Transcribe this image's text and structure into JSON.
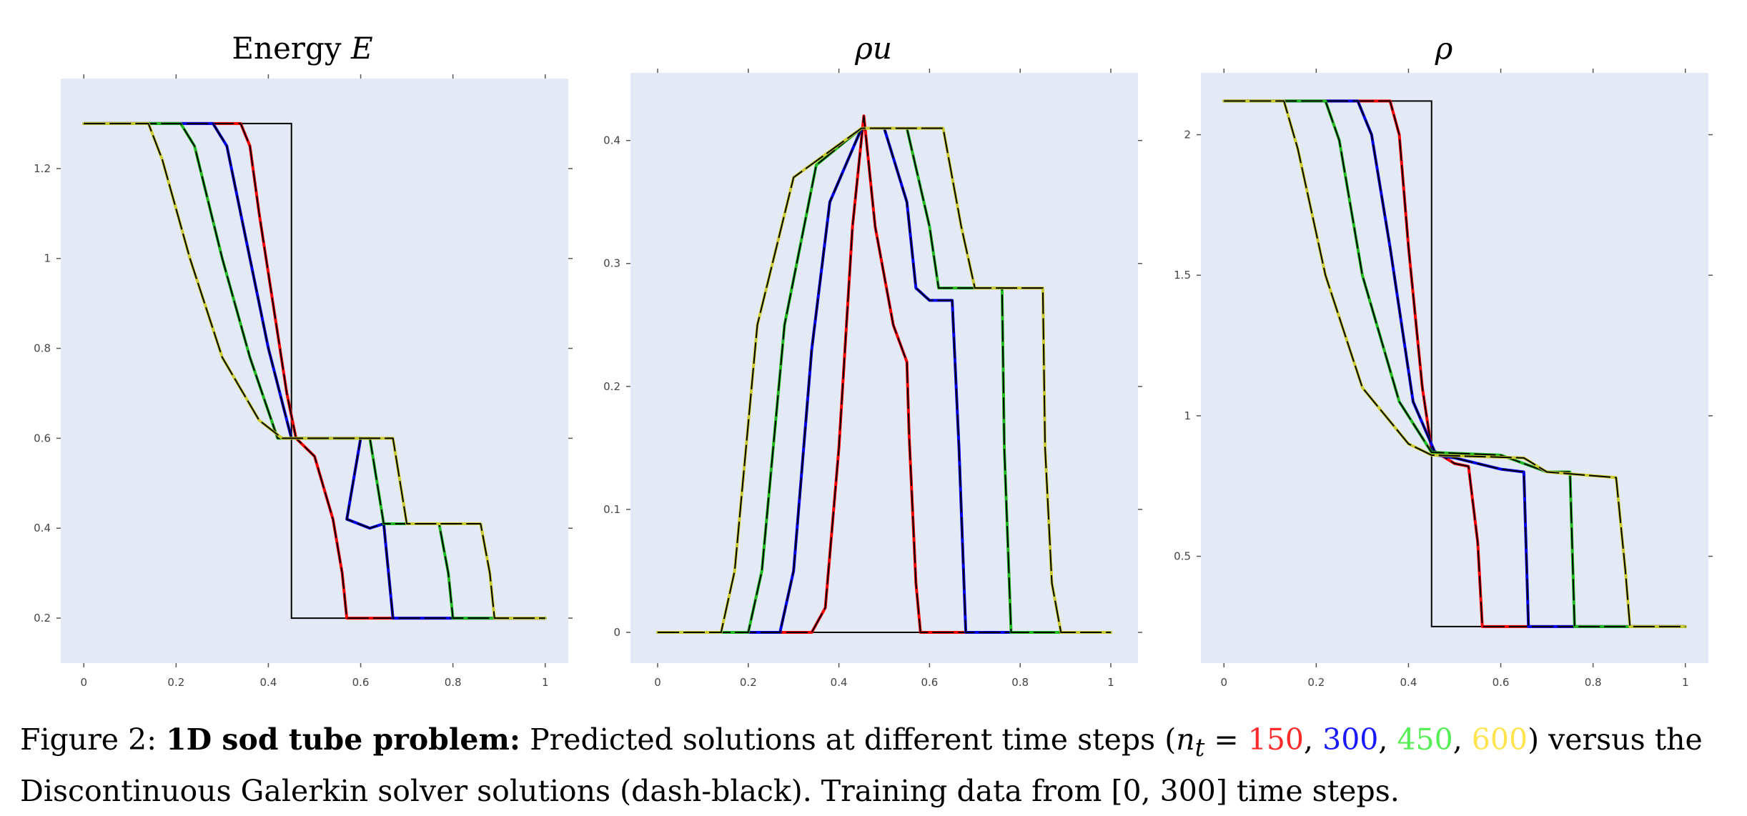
{
  "colors": {
    "plot_bg": "#e4eaf5",
    "series_150": "#ff0000",
    "series_300": "#0000ee",
    "series_450": "#22bb22",
    "series_600": "#cccc33",
    "reference": "#000000"
  },
  "chart_data": [
    {
      "type": "line",
      "title": "Energy E",
      "xlabel": "",
      "ylabel": "",
      "xlim": [
        -0.05,
        1.05
      ],
      "ylim": [
        0.1,
        1.4
      ],
      "xticks": [
        "0",
        "0.2",
        "0.4",
        "0.6",
        "0.8",
        "1"
      ],
      "yticks": [
        "0.2",
        "0.4",
        "0.6",
        "0.8",
        "1",
        "1.2"
      ],
      "xtick_values": [
        0,
        0.2,
        0.4,
        0.6,
        0.8,
        1
      ],
      "ytick_values": [
        0.2,
        0.4,
        0.6,
        0.8,
        1,
        1.2
      ],
      "initial_condition": {
        "x": [
          0,
          0.45,
          0.45,
          1
        ],
        "y": [
          1.3,
          1.3,
          0.2,
          0.2
        ]
      },
      "series": [
        {
          "nt": "150",
          "x": [
            0,
            0.34,
            0.36,
            0.38,
            0.41,
            0.44,
            0.46,
            0.5,
            0.54,
            0.56,
            0.57,
            0.62,
            1
          ],
          "y": [
            1.3,
            1.3,
            1.25,
            1.1,
            0.9,
            0.7,
            0.6,
            0.56,
            0.42,
            0.3,
            0.2,
            0.2,
            0.2
          ]
        },
        {
          "nt": "300",
          "x": [
            0,
            0.28,
            0.31,
            0.35,
            0.4,
            0.45,
            0.6,
            0.57,
            0.62,
            0.65,
            0.67,
            0.72,
            1
          ],
          "y": [
            1.3,
            1.3,
            1.25,
            1.05,
            0.8,
            0.6,
            0.6,
            0.42,
            0.4,
            0.41,
            0.2,
            0.2,
            0.2
          ]
        },
        {
          "nt": "450",
          "x": [
            0,
            0.21,
            0.24,
            0.3,
            0.36,
            0.42,
            0.62,
            0.65,
            0.77,
            0.79,
            0.8,
            1
          ],
          "y": [
            1.3,
            1.3,
            1.25,
            1.0,
            0.78,
            0.6,
            0.6,
            0.41,
            0.41,
            0.3,
            0.2,
            0.2
          ]
        },
        {
          "nt": "600",
          "x": [
            0,
            0.14,
            0.17,
            0.23,
            0.3,
            0.38,
            0.43,
            0.67,
            0.7,
            0.86,
            0.88,
            0.89,
            1
          ],
          "y": [
            1.3,
            1.3,
            1.22,
            1.0,
            0.78,
            0.64,
            0.6,
            0.6,
            0.41,
            0.41,
            0.3,
            0.2,
            0.2
          ]
        }
      ]
    },
    {
      "type": "line",
      "title": "ρu",
      "xlabel": "",
      "ylabel": "",
      "xlim": [
        -0.06,
        1.06
      ],
      "ylim": [
        -0.025,
        0.455
      ],
      "xticks": [
        "0",
        "0.2",
        "0.4",
        "0.6",
        "0.8",
        "1"
      ],
      "yticks": [
        "0",
        "0.1",
        "0.2",
        "0.3",
        "0.4"
      ],
      "xtick_values": [
        0,
        0.2,
        0.4,
        0.6,
        0.8,
        1
      ],
      "ytick_values": [
        0,
        0.1,
        0.2,
        0.3,
        0.4
      ],
      "initial_condition": {
        "x": [
          0,
          1
        ],
        "y": [
          0,
          0
        ]
      },
      "series": [
        {
          "nt": "150",
          "x": [
            0,
            0.34,
            0.37,
            0.4,
            0.43,
            0.455,
            0.48,
            0.52,
            0.55,
            0.555,
            0.57,
            0.58,
            1
          ],
          "y": [
            0,
            0,
            0.02,
            0.15,
            0.33,
            0.42,
            0.33,
            0.25,
            0.22,
            0.16,
            0.04,
            0,
            0
          ]
        },
        {
          "nt": "300",
          "x": [
            0,
            0.27,
            0.3,
            0.34,
            0.38,
            0.45,
            0.5,
            0.55,
            0.57,
            0.6,
            0.65,
            0.665,
            0.68,
            1
          ],
          "y": [
            0,
            0,
            0.05,
            0.23,
            0.35,
            0.41,
            0.41,
            0.35,
            0.28,
            0.27,
            0.27,
            0.15,
            0,
            0
          ]
        },
        {
          "nt": "450",
          "x": [
            0,
            0.2,
            0.23,
            0.28,
            0.35,
            0.45,
            0.55,
            0.6,
            0.62,
            0.76,
            0.765,
            0.78,
            1
          ],
          "y": [
            0,
            0,
            0.05,
            0.25,
            0.38,
            0.41,
            0.41,
            0.33,
            0.28,
            0.28,
            0.15,
            0,
            0
          ]
        },
        {
          "nt": "600",
          "x": [
            0,
            0.14,
            0.17,
            0.22,
            0.3,
            0.45,
            0.63,
            0.67,
            0.7,
            0.85,
            0.855,
            0.87,
            0.89,
            1
          ],
          "y": [
            0,
            0,
            0.05,
            0.25,
            0.37,
            0.41,
            0.41,
            0.33,
            0.28,
            0.28,
            0.15,
            0.04,
            0,
            0
          ]
        }
      ]
    },
    {
      "type": "line",
      "title": "ρ",
      "xlabel": "",
      "ylabel": "",
      "xlim": [
        -0.05,
        1.05
      ],
      "ylim": [
        0.12,
        2.22
      ],
      "xticks": [
        "0",
        "0.2",
        "0.4",
        "0.6",
        "0.8",
        "1"
      ],
      "yticks": [
        "0.5",
        "1",
        "1.5",
        "2"
      ],
      "xtick_values": [
        0,
        0.2,
        0.4,
        0.6,
        0.8,
        1
      ],
      "ytick_values": [
        0.5,
        1,
        1.5,
        2
      ],
      "initial_condition": {
        "x": [
          0,
          0.45,
          0.45,
          1
        ],
        "y": [
          2.12,
          2.12,
          0.25,
          0.25
        ]
      },
      "series": [
        {
          "nt": "150",
          "x": [
            0,
            0.36,
            0.38,
            0.4,
            0.43,
            0.45,
            0.5,
            0.53,
            0.55,
            0.56,
            0.58,
            1
          ],
          "y": [
            2.12,
            2.12,
            2.0,
            1.6,
            1.1,
            0.88,
            0.83,
            0.82,
            0.55,
            0.25,
            0.25,
            0.25
          ]
        },
        {
          "nt": "300",
          "x": [
            0,
            0.29,
            0.32,
            0.36,
            0.41,
            0.46,
            0.5,
            0.6,
            0.65,
            0.66,
            0.68,
            1
          ],
          "y": [
            2.12,
            2.12,
            2.0,
            1.6,
            1.05,
            0.86,
            0.85,
            0.81,
            0.8,
            0.25,
            0.25,
            0.25
          ]
        },
        {
          "nt": "450",
          "x": [
            0,
            0.22,
            0.25,
            0.3,
            0.38,
            0.45,
            0.6,
            0.7,
            0.75,
            0.76,
            0.78,
            1
          ],
          "y": [
            2.12,
            2.12,
            1.98,
            1.5,
            1.05,
            0.87,
            0.86,
            0.8,
            0.8,
            0.25,
            0.25,
            0.25
          ]
        },
        {
          "nt": "600",
          "x": [
            0,
            0.13,
            0.16,
            0.22,
            0.3,
            0.4,
            0.45,
            0.65,
            0.7,
            0.85,
            0.87,
            0.88,
            1
          ],
          "y": [
            2.12,
            2.12,
            1.95,
            1.5,
            1.1,
            0.9,
            0.86,
            0.85,
            0.8,
            0.78,
            0.45,
            0.25,
            0.25
          ]
        }
      ]
    }
  ],
  "caption": {
    "figure_label": "Figure 2:",
    "bold_title": "1D sod tube problem:",
    "text_1": "Predicted solutions at different time steps (",
    "nt_symbol": "n",
    "nt_sub": "t",
    "equals": " = ",
    "steps": [
      "150",
      "300",
      "450",
      "600"
    ],
    "text_2": ") versus the Discontinuous Galerkin solver solutions (dash-black). Training data from [0, 300] time steps."
  }
}
